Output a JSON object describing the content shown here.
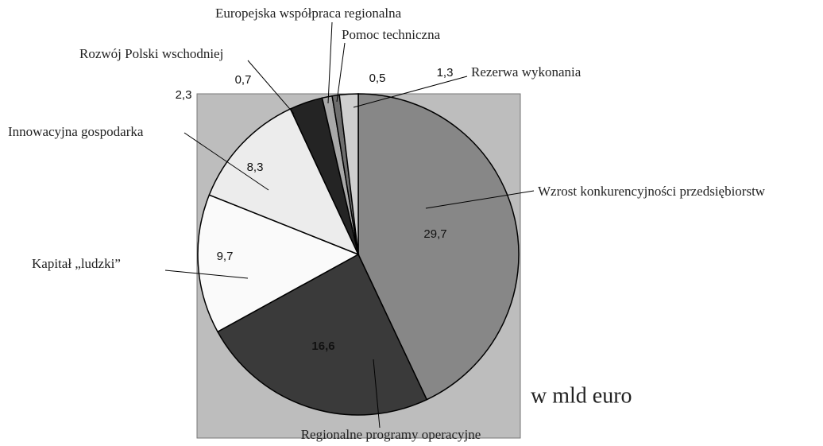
{
  "chart_data": {
    "type": "pie",
    "categories": [
      "Wzrost konkurencyjności przedsiębiorstw",
      "Regionalne programy operacyjne",
      "Kapitał „ludzki”",
      "Innowacyjna gospodarka",
      "Rozwój Polski wschodniej",
      "Europejska współpraca regionalna",
      "Pomoc techniczna",
      "Rezerwa wykonania"
    ],
    "values": [
      29.7,
      16.6,
      9.7,
      8.3,
      2.3,
      0.7,
      0.5,
      1.3
    ],
    "value_labels": [
      "29,7",
      "16,6",
      "9,7",
      "8,3",
      "2,3",
      "0,7",
      "0,5",
      "1,3"
    ],
    "colors": [
      "#878787",
      "#3a3a3a",
      "#fafafa",
      "#ececec",
      "#242424",
      "#a8a8a8",
      "#6e6e6e",
      "#cfcfcf"
    ],
    "annotation": "w mld euro"
  }
}
